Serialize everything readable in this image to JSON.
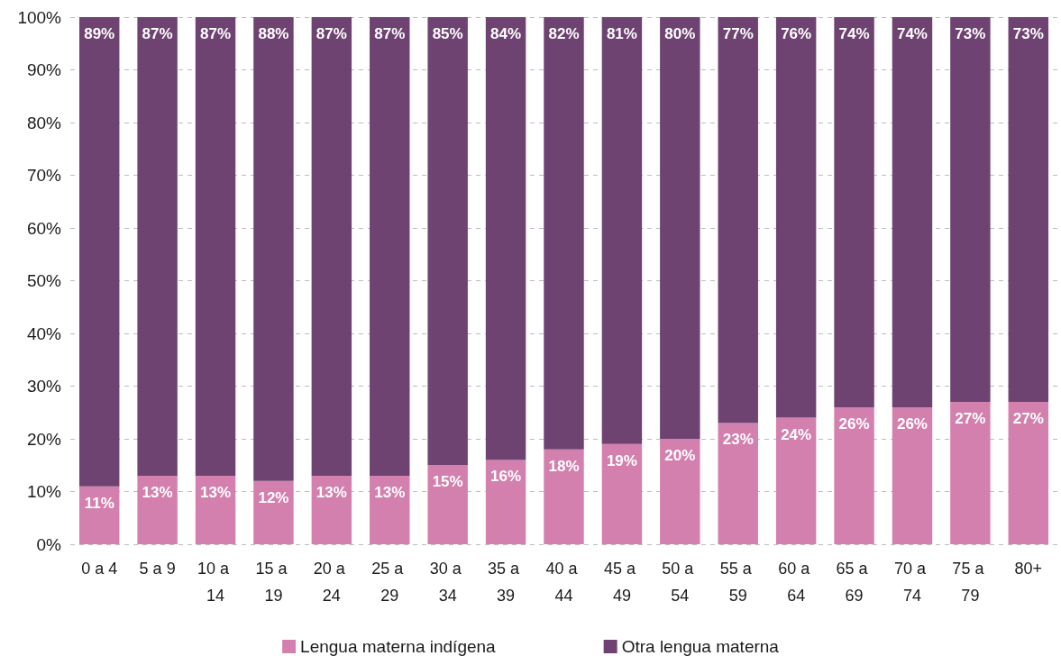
{
  "chart_data": {
    "type": "bar",
    "stacked": true,
    "categories": [
      "0 a 4",
      "5 a 9",
      "10 a 14",
      "15 a 19",
      "20 a 24",
      "25 a 29",
      "30 a 34",
      "35 a 39",
      "40 a 44",
      "45 a 49",
      "50 a 54",
      "55 a 59",
      "60 a 64",
      "65 a 69",
      "70 a 74",
      "75 a 79",
      "80+"
    ],
    "series": [
      {
        "name": "Lengua materna indígena",
        "color": "#d480af",
        "values": [
          11,
          13,
          13,
          12,
          13,
          13,
          15,
          16,
          18,
          19,
          20,
          23,
          24,
          26,
          26,
          27,
          27
        ],
        "value_labels": [
          "11%",
          "13%",
          "13%",
          "12%",
          "13%",
          "13%",
          "15%",
          "16%",
          "18%",
          "19%",
          "20%",
          "23%",
          "24%",
          "26%",
          "26%",
          "27%",
          "27%"
        ]
      },
      {
        "name": "Otra lengua materna",
        "color": "#6e4371",
        "values": [
          89,
          87,
          87,
          88,
          87,
          87,
          85,
          84,
          82,
          81,
          80,
          77,
          76,
          74,
          74,
          73,
          73
        ],
        "value_labels": [
          "89%",
          "87%",
          "87%",
          "88%",
          "87%",
          "87%",
          "85%",
          "84%",
          "82%",
          "81%",
          "80%",
          "77%",
          "76%",
          "74%",
          "74%",
          "73%",
          "73%"
        ]
      }
    ],
    "ylim": [
      0,
      100
    ],
    "yticks": [
      {
        "value": 0,
        "label": "0%"
      },
      {
        "value": 10,
        "label": "10%"
      },
      {
        "value": 20,
        "label": "20%"
      },
      {
        "value": 30,
        "label": "30%"
      },
      {
        "value": 40,
        "label": "40%"
      },
      {
        "value": 50,
        "label": "50%"
      },
      {
        "value": 60,
        "label": "60%"
      },
      {
        "value": 70,
        "label": "70%"
      },
      {
        "value": 80,
        "label": "80%"
      },
      {
        "value": 90,
        "label": "90%"
      },
      {
        "value": 100,
        "label": "100%"
      }
    ],
    "grid": "y",
    "legend": "bottom"
  }
}
